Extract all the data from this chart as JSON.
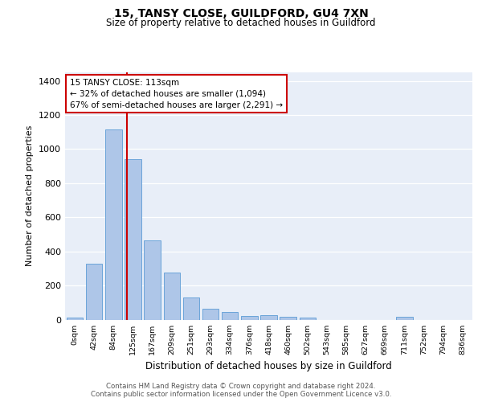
{
  "title1": "15, TANSY CLOSE, GUILDFORD, GU4 7XN",
  "title2": "Size of property relative to detached houses in Guildford",
  "xlabel": "Distribution of detached houses by size in Guildford",
  "ylabel": "Number of detached properties",
  "categories": [
    "0sqm",
    "42sqm",
    "84sqm",
    "125sqm",
    "167sqm",
    "209sqm",
    "251sqm",
    "293sqm",
    "334sqm",
    "376sqm",
    "418sqm",
    "460sqm",
    "502sqm",
    "543sqm",
    "585sqm",
    "627sqm",
    "669sqm",
    "711sqm",
    "752sqm",
    "794sqm",
    "836sqm"
  ],
  "values": [
    10,
    330,
    1115,
    940,
    465,
    275,
    130,
    65,
    47,
    20,
    25,
    18,
    10,
    0,
    0,
    0,
    0,
    15,
    0,
    0,
    0
  ],
  "bar_color": "#aec6e8",
  "bar_edge_color": "#5b9bd5",
  "annotation_text": "15 TANSY CLOSE: 113sqm\n← 32% of detached houses are smaller (1,094)\n67% of semi-detached houses are larger (2,291) →",
  "annotation_box_color": "#ffffff",
  "annotation_box_edge": "#cc0000",
  "vline_color": "#cc0000",
  "background_color": "#e8eef8",
  "footer_line1": "Contains HM Land Registry data © Crown copyright and database right 2024.",
  "footer_line2": "Contains public sector information licensed under the Open Government Licence v3.0.",
  "ylim": [
    0,
    1450
  ],
  "yticks": [
    0,
    200,
    400,
    600,
    800,
    1000,
    1200,
    1400
  ]
}
